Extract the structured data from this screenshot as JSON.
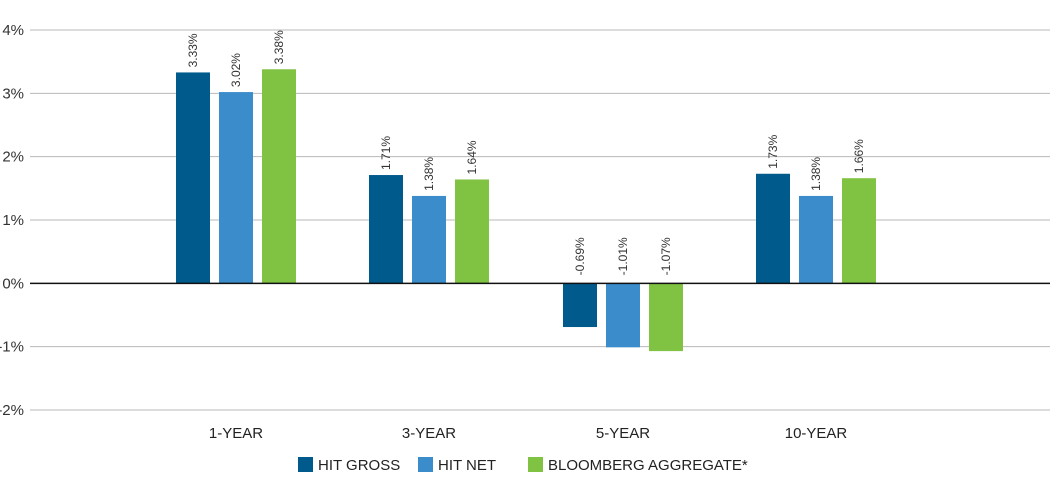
{
  "chart_data": {
    "type": "bar",
    "categories": [
      "1-YEAR",
      "3-YEAR",
      "5-YEAR",
      "10-YEAR"
    ],
    "series": [
      {
        "name": "HIT GROSS",
        "color": "#005a8c",
        "values": [
          3.33,
          1.71,
          -0.69,
          1.73
        ],
        "labels": [
          "3.33%",
          "1.71%",
          "-0.69%",
          "1.73%"
        ]
      },
      {
        "name": "HIT NET",
        "color": "#3a8ccb",
        "values": [
          3.02,
          1.38,
          -1.01,
          1.38
        ],
        "labels": [
          "3.02%",
          "1.38%",
          "-1.01%",
          "1.38%"
        ]
      },
      {
        "name": "BLOOMBERG AGGREGATE*",
        "color": "#80c242",
        "values": [
          3.38,
          1.64,
          -1.07,
          1.66
        ],
        "labels": [
          "3.38%",
          "1.64%",
          "-1.07%",
          "1.66%"
        ]
      }
    ],
    "yticks": [
      4,
      3,
      2,
      1,
      0,
      -1,
      -2
    ],
    "ytick_labels": [
      "4%",
      "3%",
      "2%",
      "1%",
      "0%",
      "-1%",
      "-2%"
    ],
    "ylim": [
      -2,
      4
    ],
    "grid": true,
    "legend_position": "bottom-center"
  }
}
